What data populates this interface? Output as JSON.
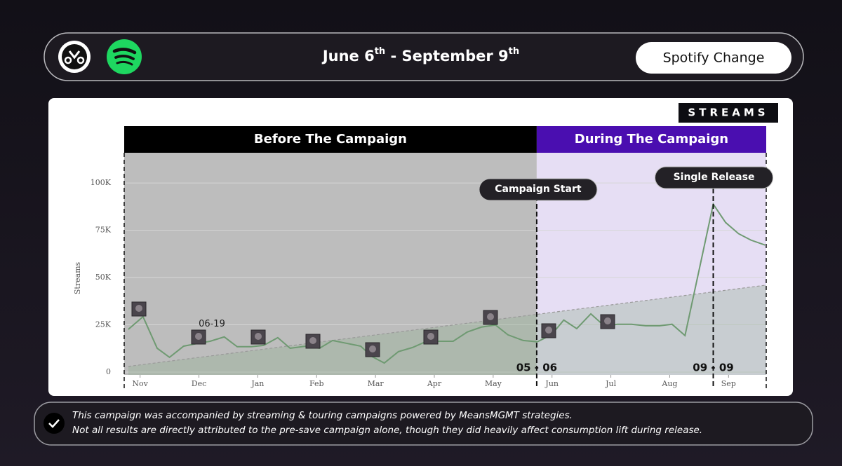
{
  "header": {
    "title_parts": [
      "June 6",
      "th",
      " - September 9",
      "th"
    ],
    "button": "Spotify Change"
  },
  "chart_data": {
    "type": "line",
    "badge": "STREAMS",
    "ylabel": "Streams",
    "xlim": [
      -0.27,
      10.64
    ],
    "xticks": [
      {
        "value": 0,
        "label": "Nov"
      },
      {
        "value": 1,
        "label": "Dec"
      },
      {
        "value": 2,
        "label": "Jan"
      },
      {
        "value": 3,
        "label": "Feb"
      },
      {
        "value": 4,
        "label": "Mar"
      },
      {
        "value": 5,
        "label": "Apr"
      },
      {
        "value": 6,
        "label": "May"
      },
      {
        "value": 7,
        "label": "Jun"
      },
      {
        "value": 8,
        "label": "Jul"
      },
      {
        "value": 9,
        "label": "Aug"
      },
      {
        "value": 10,
        "label": "Sep"
      }
    ],
    "ylim": [
      -1500,
      116000
    ],
    "yticks": [
      0,
      {
        "value": 25000,
        "label": "25K"
      },
      {
        "value": 50000,
        "label": "50K"
      },
      {
        "value": 75000,
        "label": "75K"
      },
      {
        "value": 100000,
        "label": "100K"
      }
    ],
    "grid": true,
    "regions": [
      {
        "label": "Before The Campaign",
        "x": [
          -0.27,
          6.74
        ],
        "color": "#bdbdbd",
        "header_color": "#000000"
      },
      {
        "label": "During The Campaign",
        "x": [
          6.74,
          10.64
        ],
        "color": "#e6def4",
        "header_color": "#4a0eb0"
      }
    ],
    "series": [
      {
        "name": "Streams",
        "color": "#6f9a72",
        "x": [
          -0.2,
          0.05,
          0.29,
          0.5,
          0.74,
          0.99,
          1.19,
          1.43,
          1.65,
          1.89,
          2.1,
          2.34,
          2.55,
          2.82,
          3.05,
          3.27,
          3.51,
          3.75,
          3.94,
          4.15,
          4.39,
          4.63,
          4.87,
          5.11,
          5.32,
          5.56,
          5.8,
          6.04,
          6.25,
          6.51,
          6.75,
          6.99,
          7.2,
          7.42,
          7.66,
          7.9,
          8.11,
          8.35,
          8.59,
          8.83,
          9.04,
          9.26,
          9.74,
          9.95,
          10.17,
          10.38,
          10.62
        ],
        "values": [
          22600,
          29300,
          12600,
          7800,
          13700,
          15200,
          16300,
          18600,
          13400,
          13400,
          14100,
          18200,
          12600,
          13700,
          12600,
          16700,
          15200,
          13700,
          8200,
          4800,
          10800,
          13000,
          16300,
          16300,
          16300,
          21200,
          23800,
          24900,
          19700,
          16700,
          16000,
          19700,
          27500,
          23000,
          30800,
          24100,
          25300,
          25300,
          24500,
          24500,
          25300,
          19300,
          88800,
          79100,
          73200,
          69800,
          67200
        ]
      },
      {
        "color": "#999999",
        "x": [
          -0.2,
          10.64
        ],
        "values": [
          3000,
          46000
        ]
      }
    ],
    "annotations": [
      {
        "label": "Campaign Start",
        "date_label": "05 - 06",
        "x": 6.74
      },
      {
        "label": "Single Release",
        "date_label": "09 - 09",
        "x": 9.74
      }
    ],
    "point_label": {
      "text": "06-19",
      "x": 1.22,
      "y": 25300
    }
  },
  "footer": {
    "lines": [
      "This campaign was accompanied by streaming & touring campaigns powered by MeansMGMT strategies.",
      "Not all results are directly attributed to the pre-save campaign alone, though they did heavily affect consumption lift during release."
    ]
  }
}
